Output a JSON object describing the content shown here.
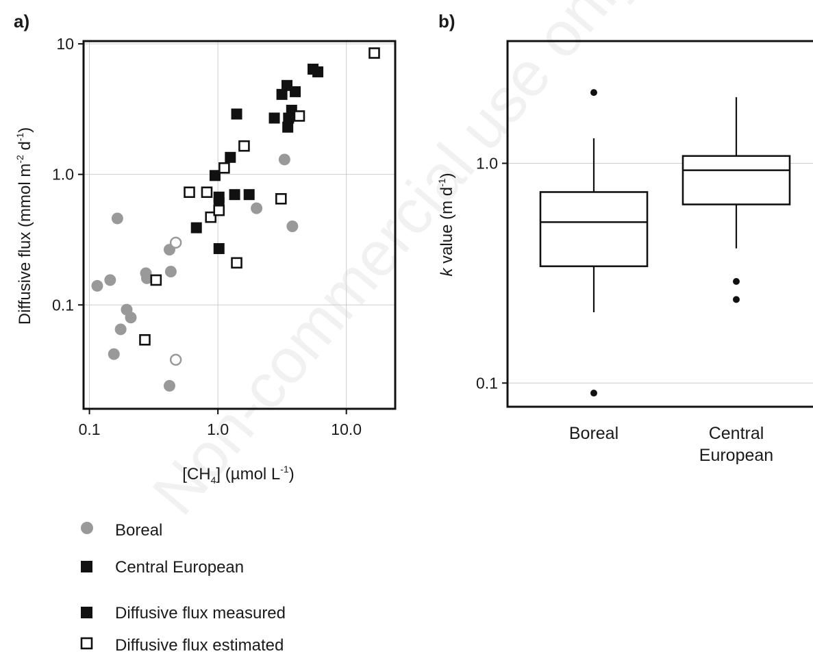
{
  "panel_a_label": "a)",
  "panel_b_label": "b)",
  "watermark": "Non-commercial use only",
  "legend": {
    "boreal": "Boreal",
    "central_european": "Central European",
    "measured": "Diffusive flux measured",
    "estimated": "Diffusive flux estimated"
  },
  "chart_data": [
    {
      "type": "scatter",
      "title": "",
      "xlabel": "[CH4] (µmol L-1)",
      "ylabel": "Diffusive flux (mmol m-2 d-1)",
      "xscale": "log",
      "yscale": "log",
      "xlim": [
        0.09,
        24
      ],
      "ylim": [
        0.016,
        10.5
      ],
      "xticks": [
        "0.1",
        "1.0",
        "10.0"
      ],
      "yticks": [
        "0.1",
        "1.0",
        "10"
      ],
      "grid": true,
      "series": [
        {
          "name": "Boreal",
          "marker": "circle",
          "filled": true,
          "color": "#999999",
          "points": [
            [
              0.115,
              0.14
            ],
            [
              0.145,
              0.155
            ],
            [
              0.165,
              0.46
            ],
            [
              0.155,
              0.042
            ],
            [
              0.175,
              0.065
            ],
            [
              0.195,
              0.092
            ],
            [
              0.21,
              0.08
            ],
            [
              0.275,
              0.175
            ],
            [
              0.28,
              0.16
            ],
            [
              0.42,
              0.265
            ],
            [
              0.43,
              0.18
            ],
            [
              0.42,
              0.024
            ],
            [
              2.0,
              0.55
            ],
            [
              3.3,
              1.3
            ],
            [
              3.8,
              0.4
            ]
          ]
        },
        {
          "name": "Boreal",
          "marker": "circle",
          "filled": false,
          "color": "#999999",
          "points": [
            [
              0.47,
              0.3
            ],
            [
              0.47,
              0.038
            ]
          ]
        },
        {
          "name": "Central European",
          "marker": "square",
          "filled": true,
          "color": "#111111",
          "points": [
            [
              0.68,
              0.39
            ],
            [
              0.95,
              0.98
            ],
            [
              1.02,
              0.67
            ],
            [
              1.02,
              0.61
            ],
            [
              1.02,
              0.27
            ],
            [
              1.25,
              1.35
            ],
            [
              1.35,
              0.7
            ],
            [
              1.4,
              2.9
            ],
            [
              1.75,
              0.7
            ],
            [
              2.75,
              2.7
            ],
            [
              3.15,
              4.1
            ],
            [
              3.45,
              4.8
            ],
            [
              3.55,
              2.7
            ],
            [
              3.5,
              2.3
            ],
            [
              3.75,
              3.1
            ],
            [
              4.0,
              4.3
            ],
            [
              5.5,
              6.4
            ],
            [
              6.0,
              6.1
            ]
          ]
        },
        {
          "name": "Central European",
          "marker": "square",
          "filled": false,
          "color": "#111111",
          "points": [
            [
              0.33,
              0.155
            ],
            [
              0.27,
              0.054
            ],
            [
              0.6,
              0.73
            ],
            [
              0.82,
              0.73
            ],
            [
              0.88,
              0.47
            ],
            [
              1.02,
              0.53
            ],
            [
              1.12,
              1.12
            ],
            [
              1.4,
              0.21
            ],
            [
              1.6,
              1.65
            ],
            [
              3.1,
              0.65
            ],
            [
              4.3,
              2.8
            ],
            [
              16.5,
              8.5
            ]
          ]
        }
      ]
    },
    {
      "type": "box",
      "title": "",
      "xlabel": "",
      "ylabel": "k value (m d-1)",
      "yscale": "log",
      "ylim": [
        0.078,
        3.6
      ],
      "yticks": [
        "0.1",
        "1.0"
      ],
      "grid": true,
      "categories": [
        "Boreal",
        "Central European"
      ],
      "boxes": [
        {
          "category": "Boreal",
          "whisker_low": 0.21,
          "q1": 0.34,
          "median": 0.54,
          "q3": 0.74,
          "whisker_high": 1.3,
          "outliers": [
            2.1,
            0.09
          ]
        },
        {
          "category": "Central European",
          "whisker_low": 0.41,
          "q1": 0.65,
          "median": 0.93,
          "q3": 1.08,
          "whisker_high": 2.0,
          "outliers": [
            0.29,
            0.24
          ]
        }
      ]
    }
  ]
}
